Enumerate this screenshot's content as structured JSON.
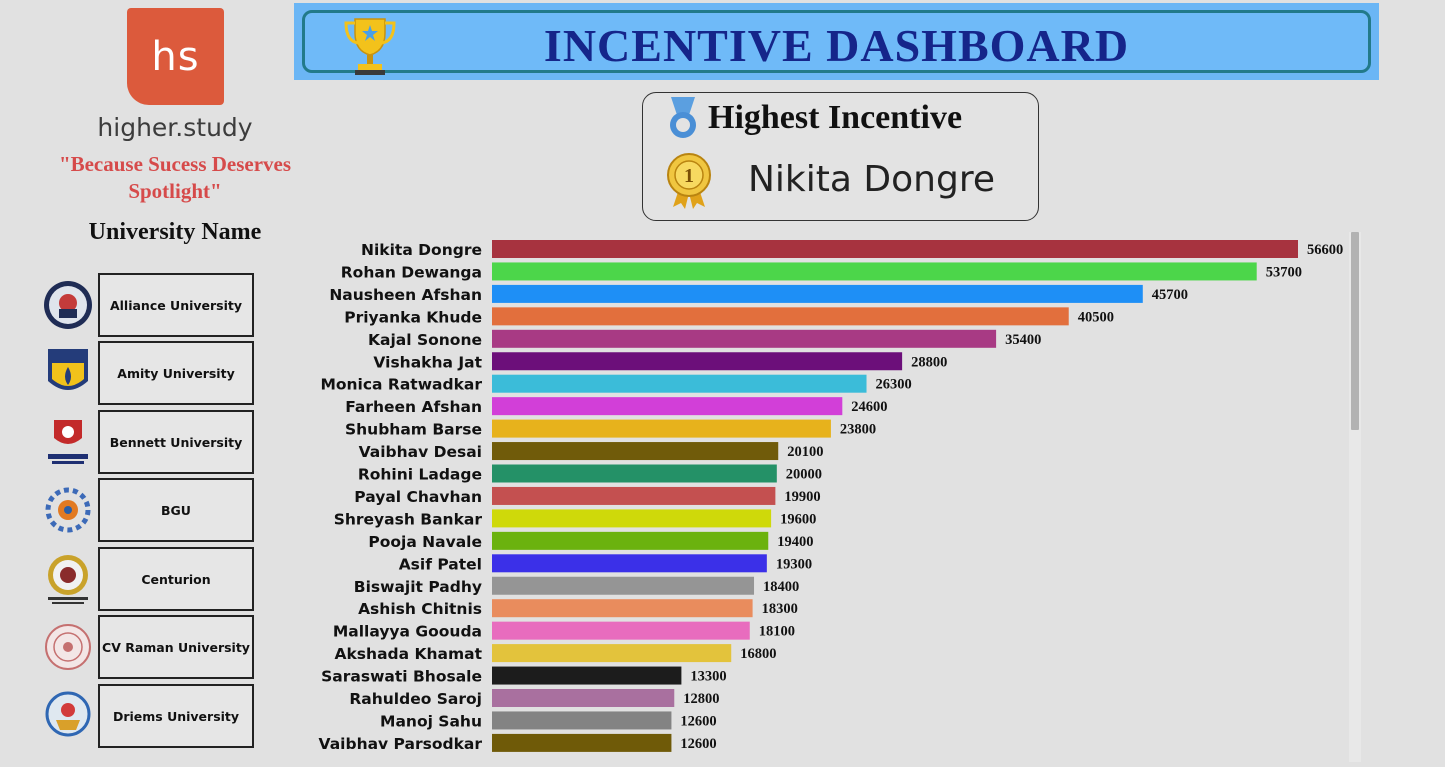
{
  "brand": {
    "logo_text": "hs",
    "name": "higher.study",
    "tagline": "\"Because Sucess Deserves Spotlight\""
  },
  "header": {
    "title": "INCENTIVE DASHBOARD",
    "icon": "trophy-icon"
  },
  "highest": {
    "title": "Highest Incentive",
    "name": "Nikita Dongre",
    "medal_label": "1"
  },
  "universities": {
    "heading": "University Name",
    "items": [
      {
        "label": "Alliance University",
        "logo": "alliance-logo"
      },
      {
        "label": "Amity University",
        "logo": "amity-logo"
      },
      {
        "label": "Bennett University",
        "logo": "bennett-logo"
      },
      {
        "label": "BGU",
        "logo": "bgu-logo"
      },
      {
        "label": "Centurion",
        "logo": "centurion-logo"
      },
      {
        "label": "CV Raman University",
        "logo": "cvraman-logo"
      },
      {
        "label": "Driems University",
        "logo": "driems-logo"
      }
    ]
  },
  "chart_data": {
    "type": "bar",
    "orientation": "horizontal",
    "categories": [
      "Nikita Dongre",
      "Rohan Dewanga",
      "Nausheen Afshan",
      "Priyanka Khude",
      "Kajal Sonone",
      "Vishakha Jat",
      "Monica Ratwadkar",
      "Farheen Afshan",
      "Shubham Barse",
      "Vaibhav Desai",
      "Rohini Ladage",
      "Payal Chavhan",
      "Shreyash Bankar",
      "Pooja Navale",
      "Asif Patel",
      "Biswajit Padhy",
      "Ashish Chitnis",
      "Mallayya Goouda",
      "Akshada Khamat",
      "Saraswati Bhosale",
      "Rahuldeo Saroj",
      "Manoj Sahu",
      "Vaibhav Parsodkar"
    ],
    "values": [
      56600,
      53700,
      45700,
      40500,
      35400,
      28800,
      26300,
      24600,
      23800,
      20100,
      20000,
      19900,
      19600,
      19400,
      19300,
      18400,
      18300,
      18100,
      16800,
      13300,
      12800,
      12600,
      12600
    ],
    "colors": [
      "#a7333f",
      "#4cd64a",
      "#1e8ff6",
      "#e26f3d",
      "#a83a84",
      "#6c0f7a",
      "#3bbcd9",
      "#d23fd8",
      "#e7b21c",
      "#705b0a",
      "#249167",
      "#c45050",
      "#cfd90a",
      "#6bb20e",
      "#3b30e8",
      "#959595",
      "#e98c5d",
      "#e86cbe",
      "#e3c33c",
      "#1c1c1c",
      "#a9709f",
      "#838383",
      "#6f5a08"
    ],
    "xlim": [
      0,
      56600
    ],
    "legend": "none",
    "grid": false
  },
  "scrollbar": {
    "position_fraction": 0.0
  }
}
